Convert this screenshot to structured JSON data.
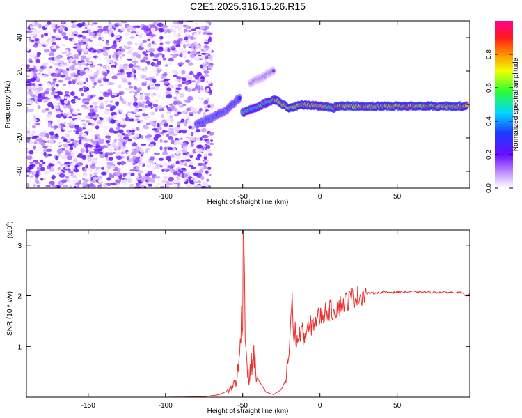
{
  "title": "C2E1.2025.316.15.26.R15",
  "chart_data": [
    {
      "type": "heatmap",
      "xlabel": "Height of straight line (km)",
      "ylabel": "Frequency (Hz)",
      "xlim": [
        -190,
        97
      ],
      "ylim": [
        -50,
        50
      ],
      "xticks": [
        -150,
        -100,
        -50,
        0,
        50
      ],
      "yticks": [
        -40,
        -20,
        0,
        20,
        40
      ],
      "colorbar": {
        "label": "Normalized spectral amplitude",
        "range": [
          0.0,
          1.0
        ],
        "ticks": [
          0.0,
          0.2,
          0.4,
          0.6,
          0.8
        ],
        "tick_labels": [
          "0.0",
          "0.2",
          "0.4",
          "0.6",
          "0.8"
        ],
        "colormap": "white-violet-blue-cyan-green-yellow-red-magenta"
      },
      "features": {
        "noise_region_x": [
          -190,
          -70
        ],
        "line_segments": [
          {
            "x": [
              -80,
              -70,
              -60,
              -52
            ],
            "y": [
              -12,
              -8,
              -3,
              4
            ],
            "amp": 0.4
          },
          {
            "x": [
              -50,
              -42,
              -35,
              -29
            ],
            "y": [
              -5,
              -2,
              1,
              3
            ],
            "amp": 0.55
          },
          {
            "x": [
              -29,
              -20,
              -10,
              0,
              10
            ],
            "y": [
              3,
              -2,
              0,
              -1,
              -2
            ],
            "amp": 0.75
          },
          {
            "x": [
              10,
              40,
              70,
              95
            ],
            "y": [
              -1,
              -1,
              -1,
              -1
            ],
            "amp": 0.8
          },
          {
            "x": [
              -45,
              -40,
              -30
            ],
            "y": [
              13,
              15,
              20
            ],
            "amp": 0.15
          }
        ]
      }
    },
    {
      "type": "line",
      "xlabel": "Height of straight line (km)",
      "ylabel": "SNR (10 * v/v)",
      "y_multiplier": "(x10",
      "y_multiplier_exp": "4",
      "xlim": [
        -190,
        97
      ],
      "ylim": [
        0,
        3.3
      ],
      "xticks": [
        -150,
        -100,
        -50,
        0,
        50
      ],
      "yticks": [
        1,
        2,
        3
      ],
      "color": "#e8302c",
      "series": [
        {
          "x": [
            -190,
            -100,
            -75,
            -65,
            -58,
            -54,
            -52,
            -51,
            -50,
            -49,
            -48,
            -47,
            -46,
            -45,
            -43,
            -41,
            -38,
            -35,
            -30,
            -25,
            -22,
            -20,
            -18,
            -17,
            -16,
            -15,
            -12,
            -10,
            -5,
            0,
            5,
            10,
            15,
            20,
            25,
            30,
            35,
            40,
            50,
            60,
            70,
            80,
            90,
            95,
            97
          ],
          "y": [
            0.0,
            0.0,
            0.01,
            0.05,
            0.15,
            0.35,
            0.7,
            1.5,
            2.4,
            3.4,
            1.0,
            0.6,
            0.3,
            0.5,
            0.85,
            0.4,
            0.25,
            0.1,
            0.05,
            0.15,
            0.35,
            0.9,
            2.05,
            1.0,
            1.3,
            1.1,
            1.3,
            1.2,
            1.45,
            1.6,
            1.7,
            1.75,
            1.85,
            1.95,
            2.0,
            2.05,
            2.05,
            2.07,
            2.07,
            2.08,
            2.07,
            2.07,
            2.07,
            2.0,
            2.06
          ]
        }
      ]
    }
  ]
}
